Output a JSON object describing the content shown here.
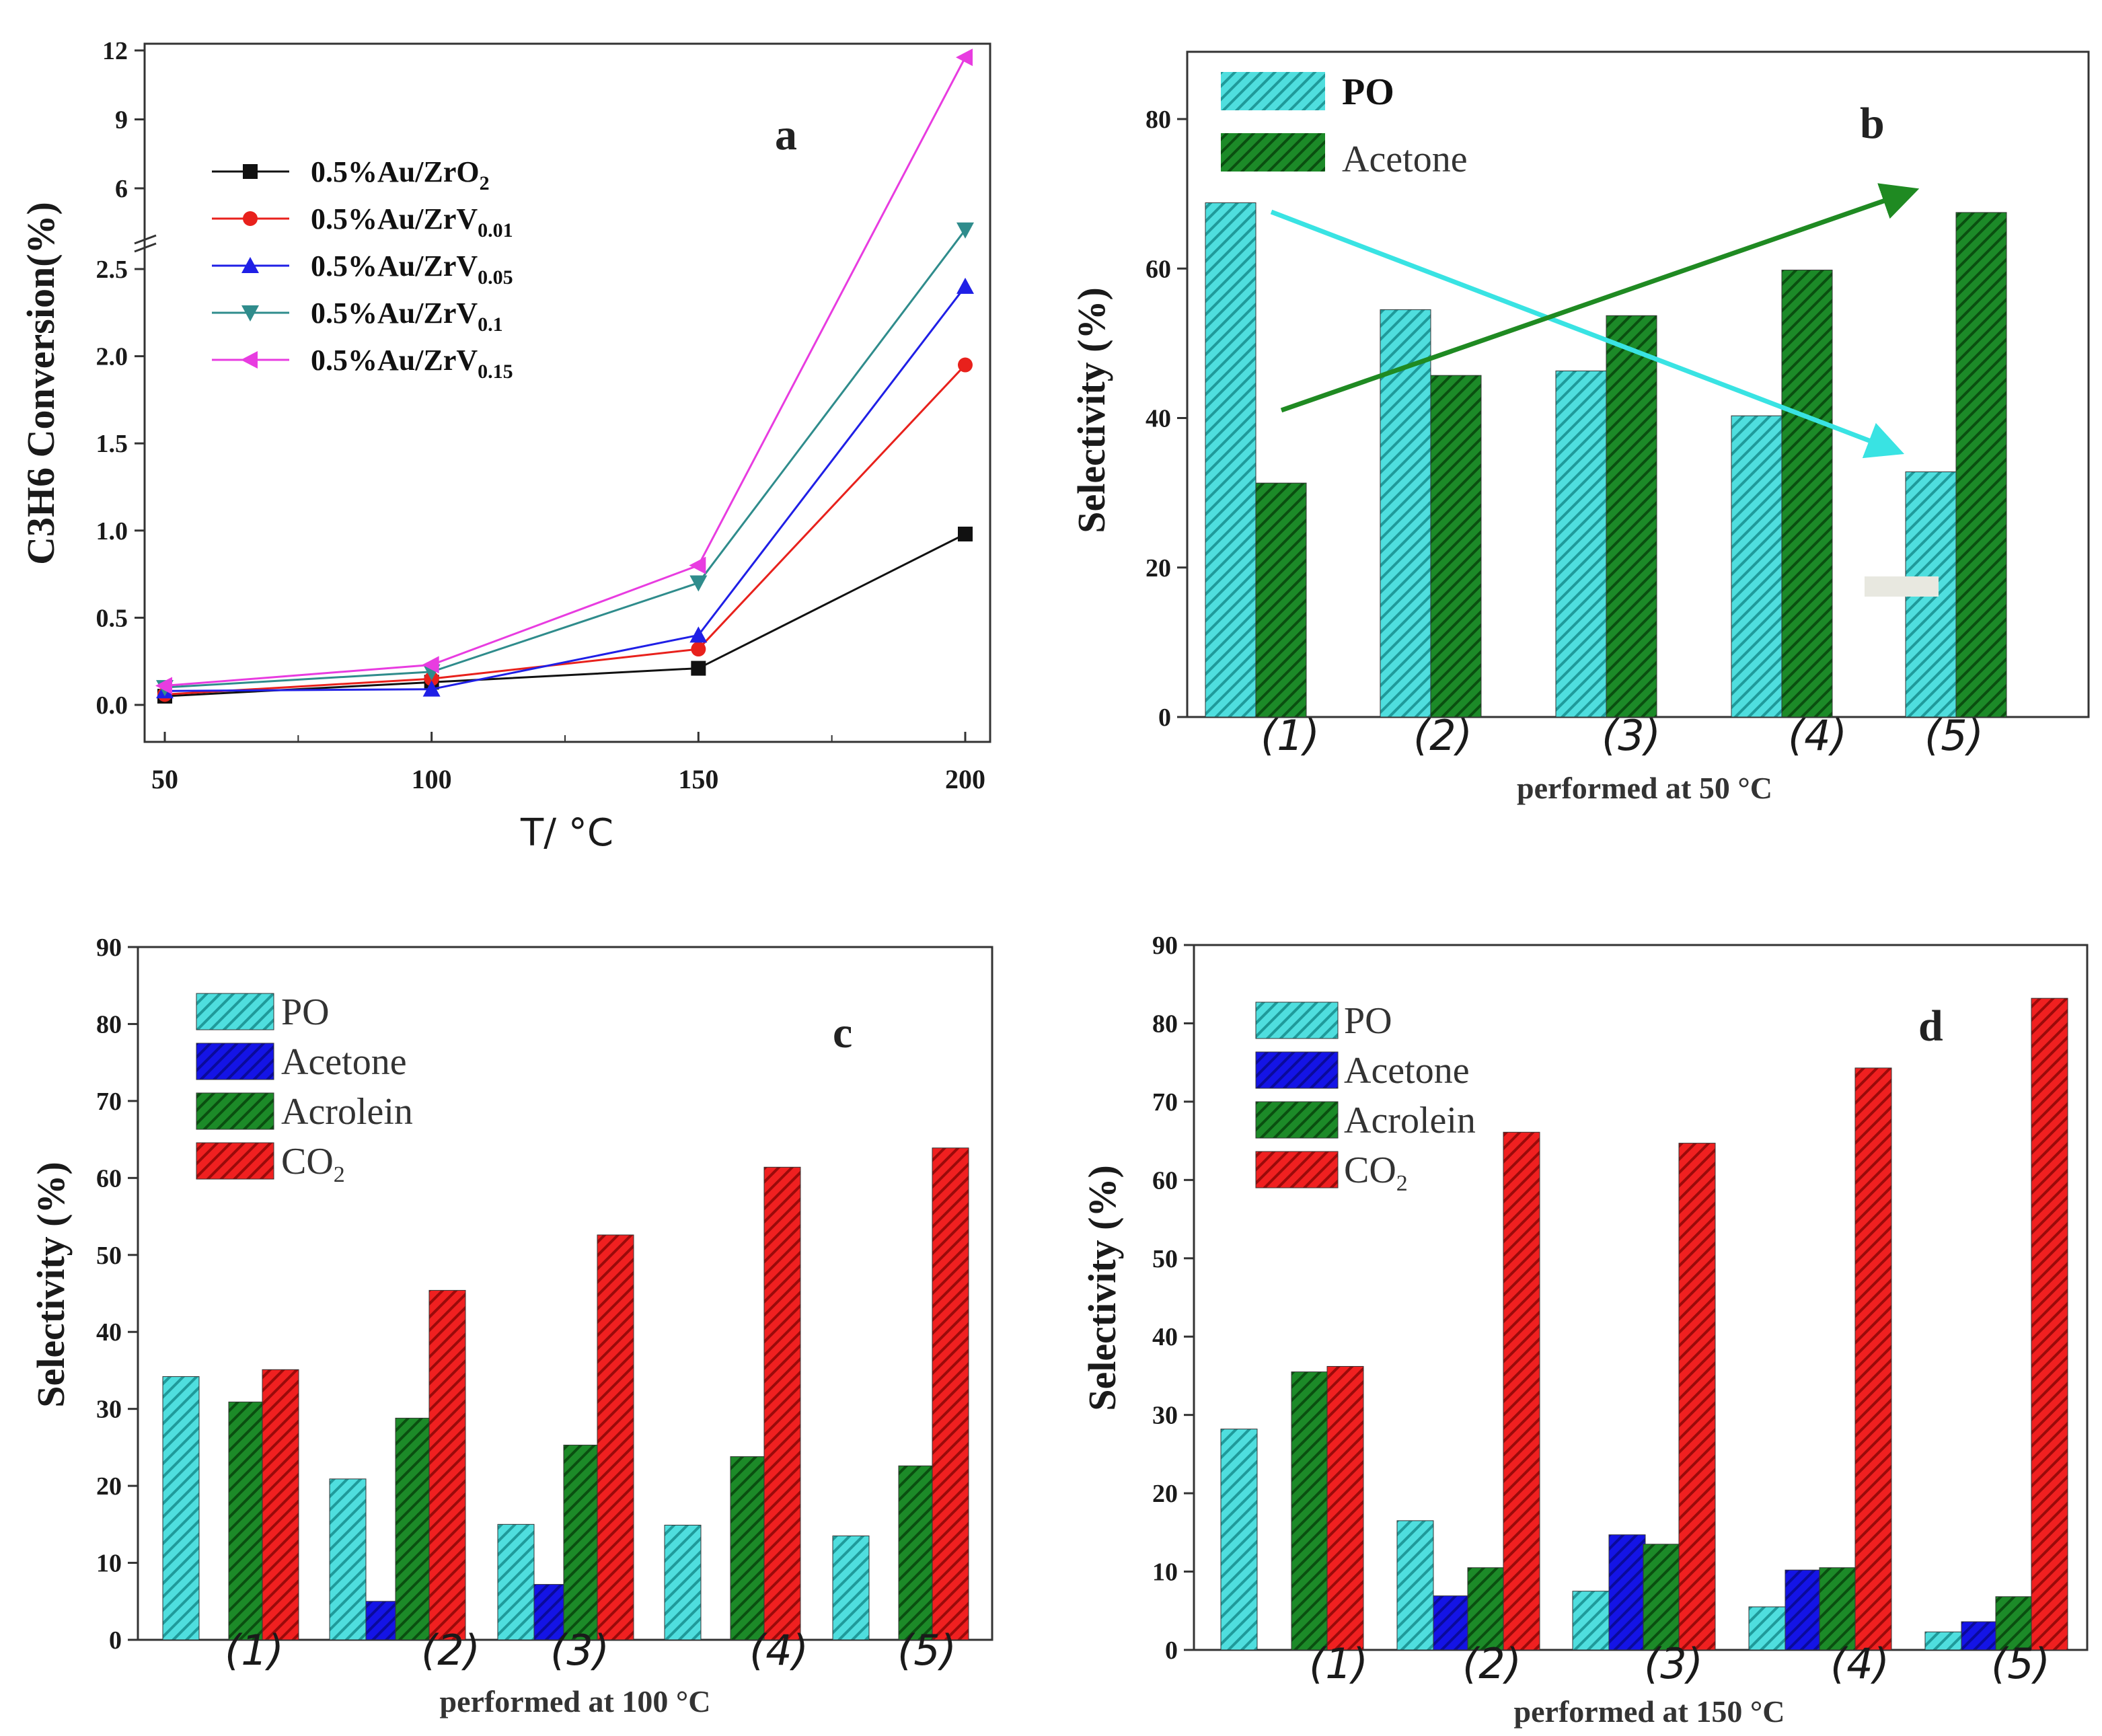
{
  "chart_data": [
    {
      "type": "line",
      "panel_label": "a",
      "xlabel": "T/ °C",
      "ylabel": "C3H6 Conversion(%)",
      "x": [
        50,
        100,
        150,
        200
      ],
      "x_ticks": [
        "50",
        "100",
        "150",
        "200"
      ],
      "y_ticks_lower": [
        "0.0",
        "0.5",
        "1.0",
        "1.5",
        "2.0",
        "2.5"
      ],
      "y_ticks_upper": [
        "6",
        "9",
        "12"
      ],
      "axis_break": "between 2.5 and 6 on y-axis",
      "legend_position": "top-left",
      "series": [
        {
          "name_prefix": "0.5%Au/ZrO",
          "name_sub": "2",
          "color": "#111111",
          "marker": "square",
          "values": [
            0.05,
            0.13,
            0.21,
            0.98
          ]
        },
        {
          "name_prefix": "0.5%Au/ZrV",
          "name_sub": "0.01",
          "color": "#e8211c",
          "marker": "circle",
          "values": [
            0.06,
            0.15,
            0.32,
            1.95
          ]
        },
        {
          "name_prefix": "0.5%Au/ZrV",
          "name_sub": "0.05",
          "color": "#1f1fe6",
          "marker": "triangle-up",
          "values": [
            0.08,
            0.09,
            0.4,
            2.4
          ]
        },
        {
          "name_prefix": "0.5%Au/ZrV",
          "name_sub": "0.1",
          "color": "#2f8c8c",
          "marker": "triangle-down",
          "values": [
            0.1,
            0.19,
            0.7,
            4.2
          ]
        },
        {
          "name_prefix": "0.5%Au/ZrV",
          "name_sub": "0.15",
          "color": "#e83ce0",
          "marker": "triangle-left",
          "values": [
            0.11,
            0.23,
            0.8,
            11.7
          ]
        }
      ]
    },
    {
      "type": "bar",
      "panel_label": "b",
      "xlabel": "performed at 50 °C",
      "ylabel": "Selectivity (%)",
      "categories": [
        "(1)",
        "(2)",
        "(3)",
        "(4)",
        "(5)"
      ],
      "ylim": [
        0,
        89
      ],
      "y_ticks": [
        0,
        20,
        40,
        60,
        80
      ],
      "legend_position": "top-left",
      "series": [
        {
          "name": "PO",
          "color": "#4fdede",
          "hatch": true,
          "values": [
            68.8,
            54.5,
            46.3,
            40.3,
            32.8
          ]
        },
        {
          "name": "Acetone",
          "color": "#147a1e",
          "hatch": false,
          "values": [
            31.3,
            45.7,
            53.7,
            59.8,
            67.5
          ]
        }
      ],
      "annotations": [
        "decreasing cyan arrow over PO bars",
        "increasing green arrow over Acetone bars"
      ]
    },
    {
      "type": "bar",
      "panel_label": "c",
      "xlabel": "performed at 100 °C",
      "ylabel": "Selectivity (%)",
      "categories": [
        "(1)",
        "(2)",
        "(3)",
        "(4)",
        "(5)"
      ],
      "ylim": [
        0,
        90
      ],
      "y_ticks": [
        0,
        10,
        20,
        30,
        40,
        50,
        60,
        70,
        80,
        90
      ],
      "legend_position": "top-left",
      "series": [
        {
          "name": "PO",
          "color": "#4fdede",
          "values": [
            34.2,
            20.9,
            15.0,
            14.9,
            13.5
          ]
        },
        {
          "name": "Acetone",
          "color": "#1010e0",
          "values": [
            0,
            5.0,
            7.2,
            0,
            0
          ]
        },
        {
          "name": "Acrolein",
          "color": "#147a1e",
          "values": [
            30.9,
            28.8,
            25.3,
            23.8,
            22.6
          ]
        },
        {
          "name": "CO2",
          "color": "#ef1c1c",
          "values": [
            35.1,
            45.4,
            52.6,
            61.4,
            63.9
          ]
        }
      ]
    },
    {
      "type": "bar",
      "panel_label": "d",
      "xlabel": "performed at 150 °C",
      "ylabel": "Selectivity (%)",
      "categories": [
        "(1)",
        "(2)",
        "(3)",
        "(4)",
        "(5)"
      ],
      "ylim": [
        0,
        90
      ],
      "y_ticks": [
        0,
        10,
        20,
        30,
        40,
        50,
        60,
        70,
        80,
        90
      ],
      "legend_position": "top-left",
      "series": [
        {
          "name": "PO",
          "color": "#4fdede",
          "values": [
            28.2,
            16.5,
            7.5,
            5.5,
            2.3
          ]
        },
        {
          "name": "Acetone",
          "color": "#1010e0",
          "values": [
            0,
            6.9,
            14.7,
            10.2,
            3.6
          ]
        },
        {
          "name": "Acrolein",
          "color": "#147a1e",
          "values": [
            35.5,
            10.5,
            13.5,
            10.5,
            6.8
          ]
        },
        {
          "name": "CO2",
          "color": "#ef1c1c",
          "values": [
            36.2,
            66.1,
            64.7,
            74.3,
            83.2
          ]
        }
      ]
    }
  ],
  "legend_text": {
    "po": "PO",
    "acetone": "Acetone",
    "acrolein": "Acrolein",
    "co2_prefix": "CO",
    "co2_sub": "2"
  }
}
